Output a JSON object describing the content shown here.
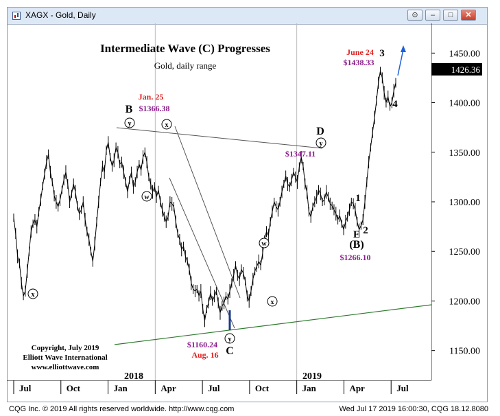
{
  "window": {
    "title": "XAGX - Gold, Daily"
  },
  "chart_data": {
    "type": "line",
    "title": "Intermediate Wave (C) Progresses",
    "subtitle": "Gold, daily range",
    "price_axis": {
      "ylim": [
        1120,
        1480
      ],
      "ticks": [
        "1450.00",
        "1400.00",
        "1350.00",
        "1300.00",
        "1250.00",
        "1200.00",
        "1150.00"
      ],
      "last_price": "1426.36"
    },
    "time_axis": {
      "labels": [
        "Jul",
        "Oct",
        "Jan",
        "Apr",
        "Jul",
        "Oct",
        "Jan",
        "Apr",
        "Jul"
      ],
      "years": [
        "2018",
        "2019"
      ]
    },
    "series": [
      {
        "values": [
          1284,
          1268,
          1245,
          1238,
          1218,
          1205,
          1210,
          1230,
          1250,
          1270,
          1278,
          1282,
          1275,
          1290,
          1302,
          1316,
          1328,
          1340,
          1348,
          1330,
          1320,
          1306,
          1300,
          1295,
          1302,
          1312,
          1322,
          1330,
          1318,
          1300,
          1308,
          1318,
          1310,
          1296,
          1288,
          1292,
          1300,
          1282,
          1270,
          1262,
          1250,
          1240,
          1258,
          1280,
          1300,
          1320,
          1336,
          1330,
          1352,
          1360,
          1345,
          1336,
          1342,
          1355,
          1350,
          1338,
          1340,
          1330,
          1320,
          1310,
          1322,
          1330,
          1315,
          1320,
          1330,
          1338,
          1332,
          1345,
          1350,
          1340,
          1325,
          1318,
          1310,
          1315,
          1305,
          1312,
          1300,
          1292,
          1285,
          1280,
          1285,
          1300,
          1298,
          1295,
          1280,
          1268,
          1262,
          1252,
          1255,
          1245,
          1240,
          1232,
          1218,
          1212,
          1210,
          1212,
          1205,
          1210,
          1192,
          1180,
          1192,
          1198,
          1208,
          1200,
          1205,
          1210,
          1198,
          1188,
          1195,
          1198,
          1205,
          1202,
          1210,
          1218,
          1226,
          1236,
          1226,
          1222,
          1232,
          1228,
          1220,
          1205,
          1200,
          1210,
          1222,
          1230,
          1235,
          1240,
          1236,
          1248,
          1262,
          1270,
          1266,
          1280,
          1290,
          1300,
          1295,
          1292,
          1300,
          1310,
          1318,
          1326,
          1318,
          1315,
          1322,
          1330,
          1325,
          1320,
          1335,
          1345,
          1336,
          1318,
          1310,
          1290,
          1285,
          1295,
          1300,
          1305,
          1312,
          1308,
          1300,
          1302,
          1310,
          1305,
          1298,
          1296,
          1292,
          1288,
          1282,
          1286,
          1278,
          1272,
          1280,
          1285,
          1292,
          1300,
          1298,
          1292,
          1280,
          1272,
          1276,
          1282,
          1300,
          1320,
          1340,
          1355,
          1370,
          1385,
          1402,
          1420,
          1432,
          1425,
          1410,
          1400,
          1406,
          1396,
          1400,
          1412,
          1420
        ]
      }
    ],
    "annotations": {
      "B": "B",
      "C": "C",
      "D": "D",
      "E": "E",
      "wave_1": "1",
      "wave_2": "2",
      "wave_3": "3",
      "wave_4": "4",
      "B_paren": "(B)",
      "y": "y",
      "x": "x",
      "w": "w",
      "jan25_date": "Jan. 25",
      "jan25_price": "$1366.38",
      "aug16_price": "$1160.24",
      "aug16_date": "Aug. 16",
      "d_price": "$1347.11",
      "e_price": "$1266.10",
      "june24_date": "June 24",
      "june24_price": "$1438.33"
    },
    "copyright": [
      "Copyright, July 2019",
      "Elliott Wave International",
      "www.elliottwave.com"
    ]
  },
  "footer": {
    "left": "CQG Inc. © 2019 All rights reserved worldwide. http://www.cqg.com",
    "right": "Wed Jul 17 2019 16:00:30, CQG 18.12.8080"
  }
}
